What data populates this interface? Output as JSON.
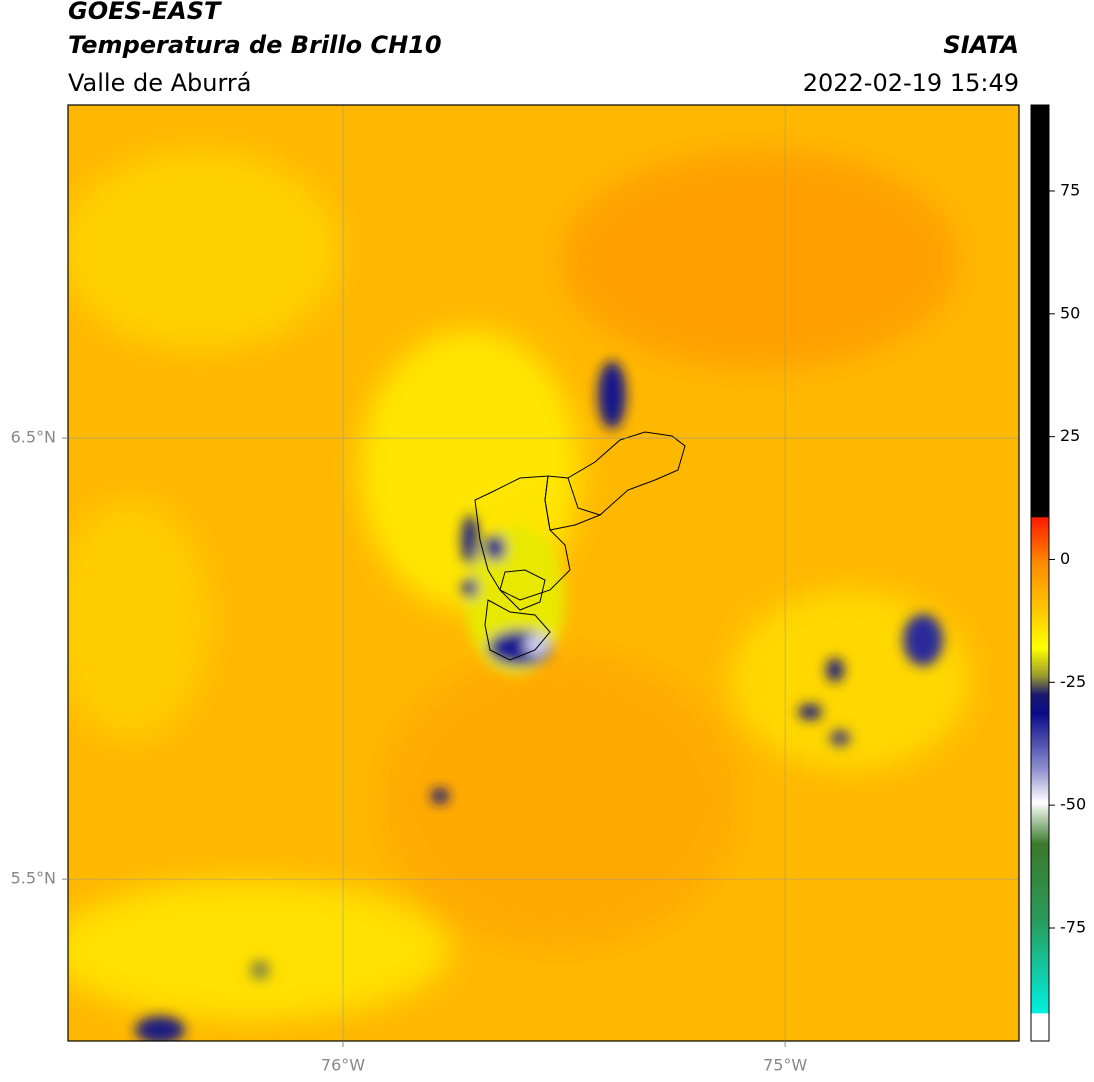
{
  "header": {
    "title": "GOES-EAST",
    "subtitle": "Temperatura de Brillo CH10",
    "region": "Valle de Aburrá",
    "source": "SIATA",
    "datetime": "2022-02-19 15:49"
  },
  "map": {
    "xlim": [
      -76.622,
      -74.471
    ],
    "ylim": [
      5.133,
      7.255
    ],
    "lon_ticks": [
      {
        "value": -76,
        "label": "76°W"
      },
      {
        "value": -75,
        "label": "75°W"
      }
    ],
    "lat_ticks": [
      {
        "value": 6.5,
        "label": "6.5°N"
      },
      {
        "value": 5.5,
        "label": "5.5°N"
      }
    ]
  },
  "colorbar": {
    "lim": [
      -98,
      92.5
    ],
    "ticks": [
      75,
      50,
      25,
      0,
      -25,
      -50,
      -75
    ]
  }
}
